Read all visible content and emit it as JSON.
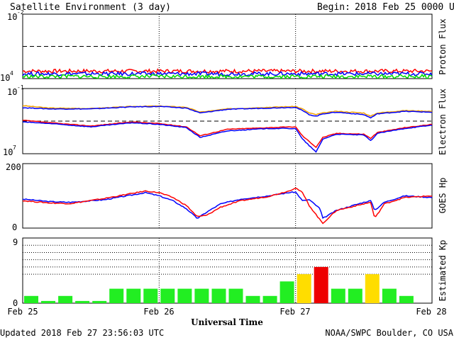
{
  "chart_data": {
    "type": "line",
    "title": "Satellite Environment (3 day)",
    "begin_label": "Begin:",
    "begin_value": "2018 Feb 25 0000 UTC",
    "xlabel": "Universal Time",
    "xticks": [
      "Feb 25",
      "Feb 26",
      "Feb 27",
      "Feb 28"
    ],
    "x_range_days": [
      0,
      3
    ],
    "updated": "Updated 2018 Feb 27 23:56:03 UTC",
    "source": "NOAA/SWPC Boulder, CO USA",
    "panels": [
      {
        "id": "proton",
        "ylabel": "Proton Flux",
        "scale": "log",
        "ylim_exp": [
          -2,
          4
        ],
        "tick_base": [
          "10",
          "10"
        ],
        "tick_exp": [
          "-2",
          "4"
        ],
        "threshold_exp": 1,
        "series": [
          {
            "color": "#ff0000",
            "level_exp": -1.3
          },
          {
            "color": "#0000ff",
            "level_exp": -1.55
          },
          {
            "color": "#00dd00",
            "level_exp": -1.8
          }
        ]
      },
      {
        "id": "electron",
        "ylabel": "Electron Flux",
        "scale": "log",
        "ylim_exp": [
          -1,
          7
        ],
        "tick_base": [
          "10",
          "10"
        ],
        "tick_exp": [
          "-1",
          "7"
        ],
        "threshold_exp": 3,
        "series": [
          {
            "color": "#f0a000",
            "x": [
              0,
              0.2,
              0.5,
              0.8,
              1.0,
              1.2,
              1.3,
              1.5,
              1.8,
              2.0,
              2.05,
              2.1,
              2.15,
              2.2,
              2.3,
              2.5,
              2.55,
              2.6,
              2.8,
              3.0
            ],
            "y": [
              4.9,
              4.6,
              4.55,
              4.8,
              4.85,
              4.7,
              4.1,
              4.5,
              4.7,
              4.8,
              4.5,
              4.0,
              3.8,
              4.0,
              4.2,
              4.0,
              3.6,
              4.0,
              4.3,
              4.2
            ]
          },
          {
            "color": "#0000ff",
            "x": [
              0,
              0.2,
              0.5,
              0.8,
              1.0,
              1.2,
              1.3,
              1.5,
              1.8,
              2.0,
              2.05,
              2.1,
              2.15,
              2.2,
              2.3,
              2.5,
              2.55,
              2.6,
              2.8,
              3.0
            ],
            "y": [
              4.65,
              4.5,
              4.5,
              4.75,
              4.8,
              4.6,
              4.0,
              4.45,
              4.6,
              4.7,
              4.3,
              3.8,
              3.6,
              3.9,
              4.1,
              3.8,
              3.4,
              3.9,
              4.2,
              4.1
            ]
          },
          {
            "color": "#ff0000",
            "x": [
              0,
              0.2,
              0.5,
              0.8,
              1.0,
              1.2,
              1.3,
              1.5,
              1.8,
              2.0,
              2.05,
              2.1,
              2.15,
              2.2,
              2.3,
              2.5,
              2.55,
              2.6,
              2.8,
              3.0
            ],
            "y": [
              3.1,
              2.8,
              2.4,
              2.9,
              2.7,
              2.3,
              1.2,
              2.0,
              2.2,
              2.3,
              1.2,
              0.5,
              -0.2,
              1.0,
              1.5,
              1.4,
              0.9,
              1.6,
              2.2,
              2.6
            ]
          },
          {
            "color": "#0000ff",
            "x": [
              0,
              0.2,
              0.5,
              0.8,
              1.0,
              1.2,
              1.3,
              1.5,
              1.8,
              2.0,
              2.05,
              2.1,
              2.15,
              2.2,
              2.3,
              2.5,
              2.55,
              2.6,
              2.8,
              3.0
            ],
            "y": [
              2.9,
              2.7,
              2.3,
              2.8,
              2.6,
              2.2,
              1.0,
              1.8,
              2.1,
              2.1,
              0.8,
              0.0,
              -0.8,
              0.8,
              1.4,
              1.3,
              0.6,
              1.5,
              2.1,
              2.5
            ]
          }
        ]
      },
      {
        "id": "hp",
        "ylabel": "GOES Hp",
        "scale": "linear",
        "ylim": [
          0,
          200
        ],
        "ticks": [
          "0",
          "200"
        ],
        "series": [
          {
            "color": "#0000ff",
            "x": [
              0,
              0.2,
              0.35,
              0.6,
              0.9,
              1.0,
              1.1,
              1.2,
              1.28,
              1.35,
              1.45,
              1.6,
              1.8,
              1.95,
              2.0,
              2.05,
              2.1,
              2.18,
              2.2,
              2.3,
              2.5,
              2.55,
              2.58,
              2.65,
              2.8,
              3.0
            ],
            "y": [
              90,
              82,
              80,
              88,
              110,
              100,
              85,
              60,
              30,
              50,
              75,
              90,
              100,
              110,
              112,
              85,
              88,
              60,
              30,
              55,
              80,
              85,
              55,
              80,
              100,
              95
            ]
          },
          {
            "color": "#ff0000",
            "x": [
              0,
              0.2,
              0.35,
              0.6,
              0.9,
              1.0,
              1.1,
              1.2,
              1.28,
              1.35,
              1.45,
              1.6,
              1.8,
              1.95,
              2.0,
              2.05,
              2.1,
              2.18,
              2.2,
              2.3,
              2.5,
              2.55,
              2.58,
              2.65,
              2.8,
              3.0
            ],
            "y": [
              85,
              78,
              76,
              92,
              115,
              110,
              95,
              70,
              35,
              40,
              65,
              85,
              98,
              115,
              125,
              110,
              70,
              25,
              15,
              55,
              75,
              80,
              30,
              75,
              95,
              100
            ]
          }
        ]
      },
      {
        "id": "kp",
        "ylabel": "Estimated Kp",
        "scale": "linear",
        "ylim": [
          0,
          9
        ],
        "ticks": [
          "0",
          "9"
        ],
        "dotted_levels": [
          4,
          5,
          6,
          7,
          8
        ],
        "kp_values": [
          1,
          0.3,
          1,
          0.3,
          0.3,
          2,
          2,
          2,
          2,
          2,
          2,
          2,
          2,
          1,
          1,
          3,
          4,
          5,
          2,
          2,
          4,
          2,
          1,
          0
        ],
        "kp_colors": {
          "quiet": "#22ee22",
          "active": "#ffdd00",
          "storm": "#ee0000"
        }
      }
    ]
  }
}
